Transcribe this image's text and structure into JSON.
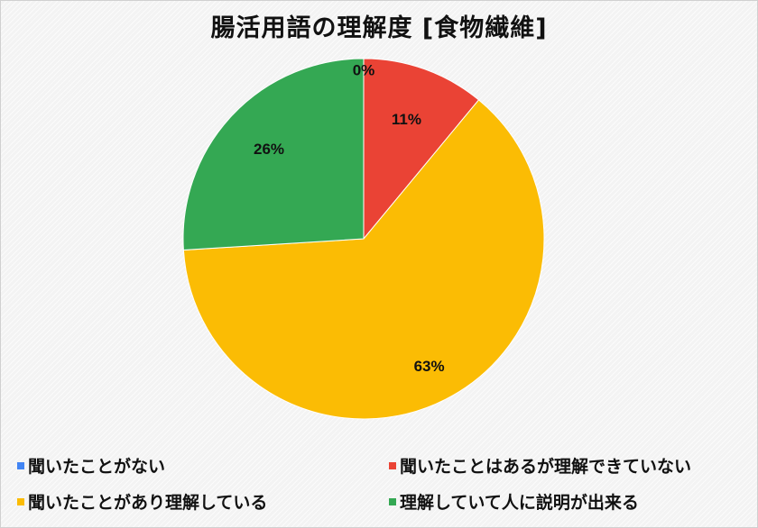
{
  "chart_data": {
    "type": "pie",
    "title": "腸活用語の理解度 [食物繊維]",
    "slices": [
      {
        "label": "聞いたことがない",
        "value": 0,
        "display": "0%",
        "color": "#4285F4"
      },
      {
        "label": "聞いたことはあるが理解できていない",
        "value": 11,
        "display": "11%",
        "color": "#EA4335"
      },
      {
        "label": "聞いたことがあり理解している",
        "value": 63,
        "display": "63%",
        "color": "#FBBC04"
      },
      {
        "label": "理解していて人に説明が出来る",
        "value": 26,
        "display": "26%",
        "color": "#34A853"
      }
    ],
    "legend_position": "bottom",
    "start_angle": "12 o'clock",
    "direction": "clockwise"
  }
}
